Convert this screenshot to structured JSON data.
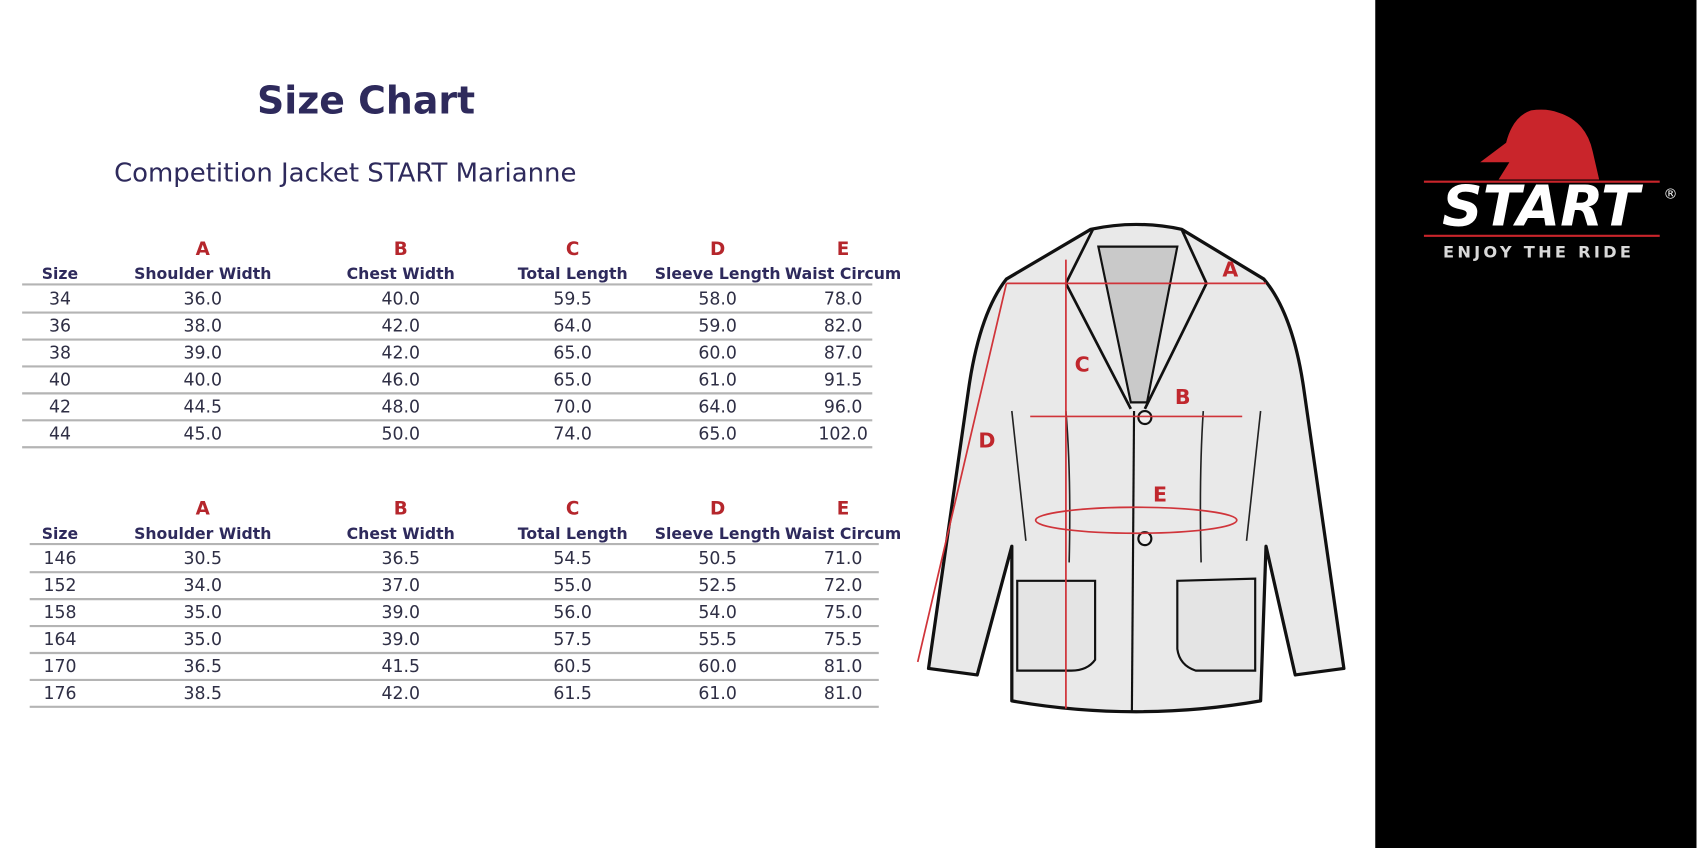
{
  "header": {
    "title": "Size Chart",
    "subtitle": "Competition Jacket START Marianne"
  },
  "tables": [
    {
      "letters": [
        "A",
        "B",
        "C",
        "D",
        "E"
      ],
      "columns": [
        "Size",
        "Shoulder Width",
        "Chest Width",
        "Total Length",
        "Sleeve Length",
        "Waist Circum"
      ],
      "rows": [
        [
          "34",
          "36.0",
          "40.0",
          "59.5",
          "58.0",
          "78.0"
        ],
        [
          "36",
          "38.0",
          "42.0",
          "64.0",
          "59.0",
          "82.0"
        ],
        [
          "38",
          "39.0",
          "42.0",
          "65.0",
          "60.0",
          "87.0"
        ],
        [
          "40",
          "40.0",
          "46.0",
          "65.0",
          "61.0",
          "91.5"
        ],
        [
          "42",
          "44.5",
          "48.0",
          "70.0",
          "64.0",
          "96.0"
        ],
        [
          "44",
          "45.0",
          "50.0",
          "74.0",
          "65.0",
          "102.0"
        ]
      ]
    },
    {
      "letters": [
        "A",
        "B",
        "C",
        "D",
        "E"
      ],
      "columns": [
        "Size",
        "Shoulder Width",
        "Chest Width",
        "Total Length",
        "Sleeve Length",
        "Waist Circum"
      ],
      "rows": [
        [
          "146",
          "30.5",
          "36.5",
          "54.5",
          "50.5",
          "71.0"
        ],
        [
          "152",
          "34.0",
          "37.0",
          "55.0",
          "52.5",
          "72.0"
        ],
        [
          "158",
          "35.0",
          "39.0",
          "56.0",
          "54.0",
          "75.0"
        ],
        [
          "164",
          "35.0",
          "39.0",
          "57.5",
          "55.5",
          "75.5"
        ],
        [
          "170",
          "36.5",
          "41.5",
          "60.5",
          "60.0",
          "81.0"
        ],
        [
          "176",
          "38.5",
          "42.0",
          "61.5",
          "61.0",
          "81.0"
        ]
      ]
    }
  ],
  "diagram": {
    "labels": [
      "A",
      "B",
      "C",
      "D",
      "E"
    ]
  },
  "brand": {
    "name": "START",
    "registered": "®",
    "tagline": "ENJOY THE RIDE"
  }
}
